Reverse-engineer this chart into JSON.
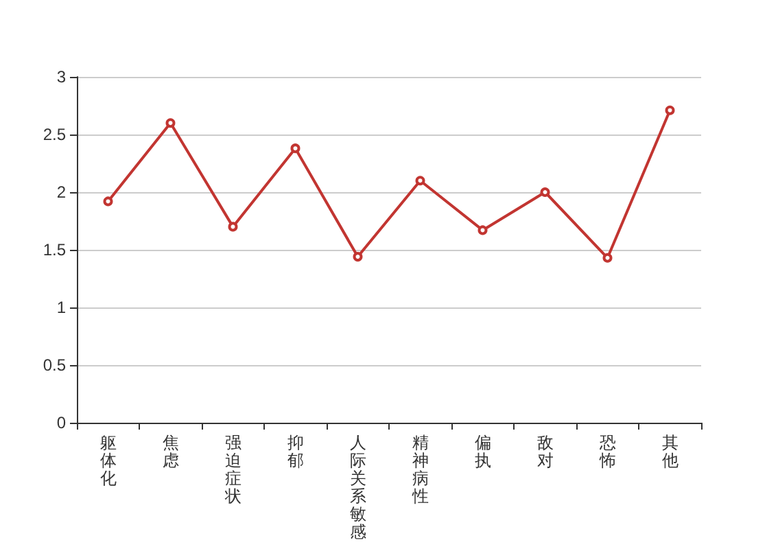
{
  "chart_data": {
    "type": "line",
    "categories": [
      "躯体化",
      "焦虑",
      "强迫症状",
      "抑郁",
      "人际关系敏感",
      "精神病性",
      "偏执",
      "敌对",
      "恐怖",
      "其他"
    ],
    "series": [
      {
        "color": "#c23531",
        "values": [
          1.92,
          2.6,
          1.7,
          2.38,
          1.44,
          2.1,
          1.67,
          2.0,
          1.43,
          2.71
        ]
      }
    ],
    "ylim": [
      0,
      3
    ],
    "yticks": [
      0,
      {
        "value": 0.5,
        "label": "0.5"
      },
      1,
      {
        "value": 1.5,
        "label": "1.5"
      },
      2,
      {
        "value": 2.5,
        "label": "2.5"
      },
      3
    ],
    "grid": "y",
    "marker": "circle",
    "line_style": "solid"
  }
}
